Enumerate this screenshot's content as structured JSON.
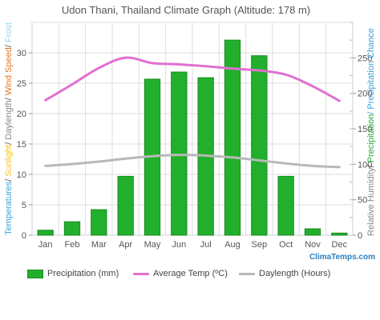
{
  "chart_data": {
    "type": "bar",
    "title": "Udon Thani, Thailand Climate Graph (Altitude: 178 m)",
    "categories": [
      "Jan",
      "Feb",
      "Mar",
      "Apr",
      "May",
      "Jun",
      "Jul",
      "Aug",
      "Sep",
      "Oct",
      "Nov",
      "Dec"
    ],
    "series": [
      {
        "name": "Precipitation (mm)",
        "axis": "right",
        "type": "bar",
        "values": [
          7,
          19,
          36,
          83,
          220,
          230,
          222,
          275,
          253,
          83,
          9,
          3
        ]
      },
      {
        "name": "Average Temp (ºC)",
        "axis": "left",
        "type": "line",
        "values": [
          22.2,
          24.8,
          27.5,
          29.2,
          28.3,
          28.1,
          27.8,
          27.4,
          27.1,
          26.4,
          24.5,
          22.1
        ]
      },
      {
        "name": "Daylength (Hours)",
        "axis": "left",
        "type": "line",
        "values": [
          11.4,
          11.7,
          12.1,
          12.6,
          13.0,
          13.2,
          13.1,
          12.8,
          12.3,
          11.8,
          11.4,
          11.2
        ]
      }
    ],
    "left_axis": {
      "ylim": [
        0,
        35
      ],
      "ticks": [
        0,
        5,
        10,
        15,
        20,
        25,
        30
      ]
    },
    "right_axis": {
      "ylim": [
        0,
        300
      ],
      "ticks": [
        0,
        50,
        100,
        150,
        200,
        250
      ]
    },
    "ylabel_left_parts": [
      {
        "text": "Temperatures",
        "color": "#3aa0d8"
      },
      {
        "text": "/ ",
        "color": "#555555"
      },
      {
        "text": "Sunlight",
        "color": "#f5c518"
      },
      {
        "text": "/ ",
        "color": "#555555"
      },
      {
        "text": "Daylength",
        "color": "#888888"
      },
      {
        "text": "/ ",
        "color": "#555555"
      },
      {
        "text": "Wind Speed",
        "color": "#e0762a"
      },
      {
        "text": "/ ",
        "color": "#555555"
      },
      {
        "text": "Frost",
        "color": "#9bd4ee"
      }
    ],
    "ylabel_right_parts": [
      {
        "text": "Relative Humidity",
        "color": "#888888"
      },
      {
        "text": "/ ",
        "color": "#555555"
      },
      {
        "text": "Precipitation",
        "color": "#22aa33"
      },
      {
        "text": "/ Precipitation Chance",
        "color": "#3aa0d8"
      }
    ],
    "grid": true,
    "legend_position": "bottom",
    "colors": {
      "precip": "#22b02c",
      "precip_edge": "#198a20",
      "temp": "#e070d0",
      "daylength": "#b8b8b8"
    }
  },
  "credit": "ClimaTemps.com"
}
